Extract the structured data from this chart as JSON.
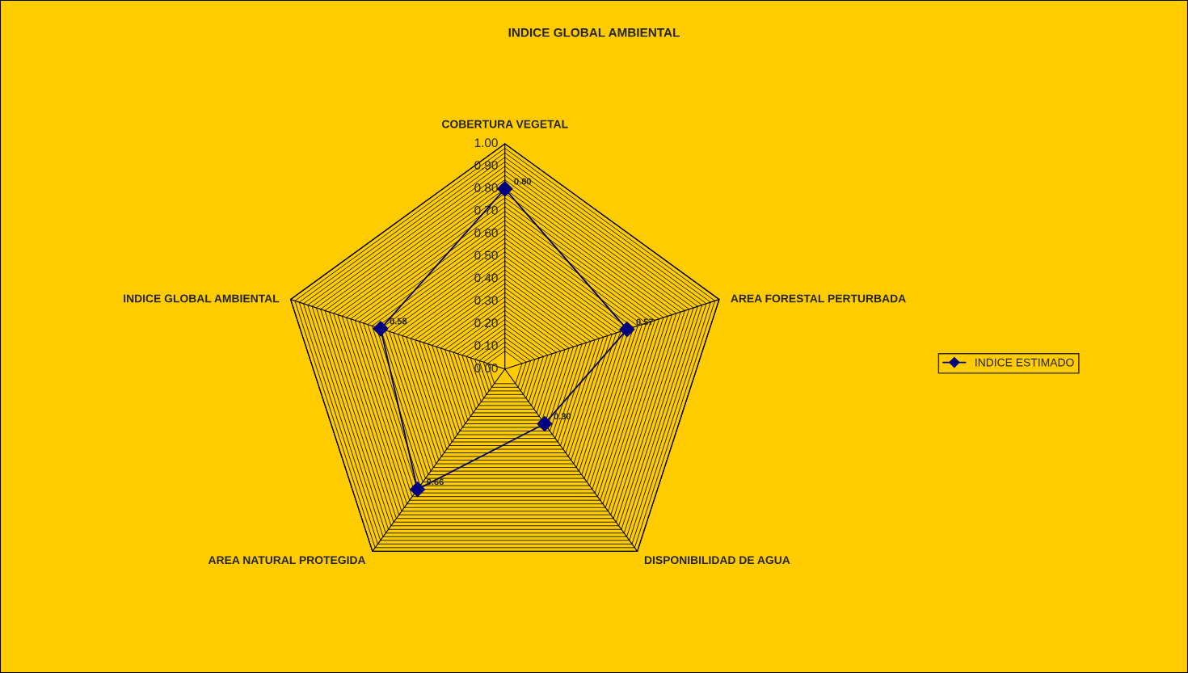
{
  "chart_data": {
    "type": "radar",
    "title": "INDICE GLOBAL AMBIENTAL",
    "categories": [
      "COBERTURA VEGETAL",
      "AREA FORESTAL PERTURBADA",
      "DISPONIBILIDAD DE AGUA",
      "AREA NATURAL PROTEGIDA",
      "INDICE GLOBAL AMBIENTAL"
    ],
    "series": [
      {
        "name": "INDICE ESTIMADO",
        "color": "#000080",
        "values": [
          0.8,
          0.57,
          0.3,
          0.66,
          0.58
        ],
        "value_labels": [
          "0.80",
          "0.57",
          "0.30",
          "0.66",
          "0.58"
        ]
      }
    ],
    "ylim": [
      0,
      1
    ],
    "yticks": [
      {
        "value": 0,
        "label": "0.00"
      },
      {
        "value": 0.1,
        "label": "0.10"
      },
      {
        "value": 0.2,
        "label": "0.20"
      },
      {
        "value": 0.3,
        "label": "0.30"
      },
      {
        "value": 0.4,
        "label": "0.40"
      },
      {
        "value": 0.5,
        "label": "0.50"
      },
      {
        "value": 0.6,
        "label": "0.60"
      },
      {
        "value": 0.7,
        "label": "0.70"
      },
      {
        "value": 0.8,
        "label": "0.80"
      },
      {
        "value": 0.9,
        "label": "0.90"
      },
      {
        "value": 1,
        "label": "1.00"
      }
    ],
    "grid": true,
    "marker": "diamond",
    "legend": "right"
  }
}
